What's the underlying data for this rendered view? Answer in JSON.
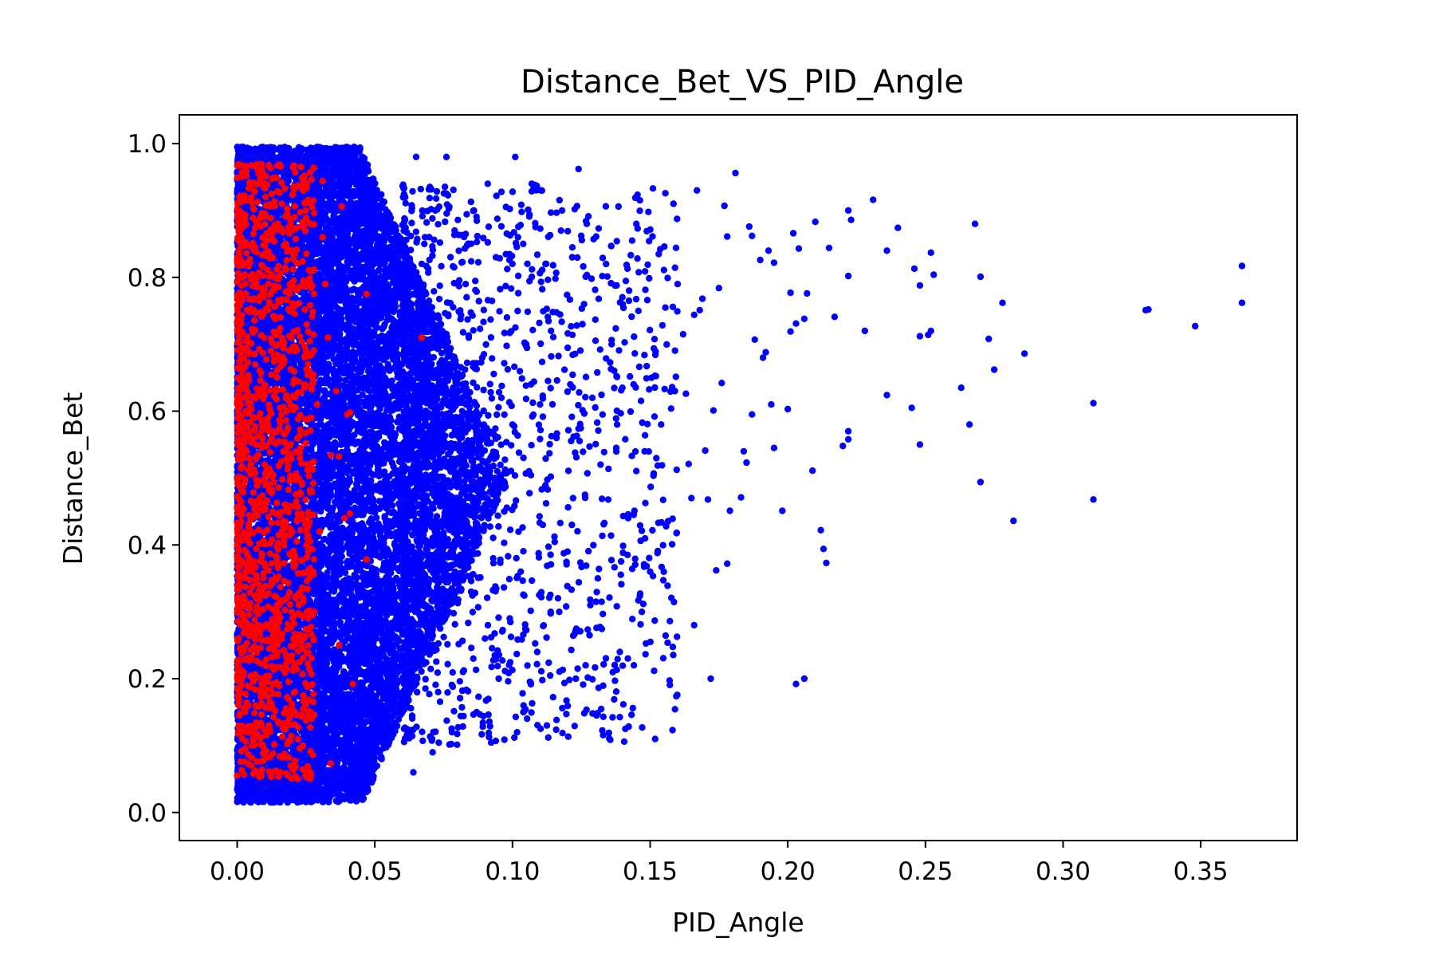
{
  "chart_data": {
    "type": "scatter",
    "title": "Distance_Bet_VS_PID_Angle",
    "xlabel": "PID_Angle",
    "ylabel": "Distance_Bet",
    "xlim": [
      -0.021,
      0.385
    ],
    "ylim": [
      -0.042,
      1.043
    ],
    "xticks": [
      0.0,
      0.05,
      0.1,
      0.15,
      0.2,
      0.25,
      0.3,
      0.35
    ],
    "xtick_labels": [
      "0.00",
      "0.05",
      "0.10",
      "0.15",
      "0.20",
      "0.25",
      "0.30",
      "0.35"
    ],
    "yticks": [
      0.0,
      0.2,
      0.4,
      0.6,
      0.8,
      1.0
    ],
    "ytick_labels": [
      "0.0",
      "0.2",
      "0.4",
      "0.6",
      "0.8",
      "1.0"
    ],
    "grid": false,
    "legend": "none",
    "series": [
      {
        "color": "#0000ff",
        "note_points": "dense cloud x 0.00-0.09; sparse points listed below",
        "points": [
          [
            0.365,
            0.817
          ],
          [
            0.365,
            0.762
          ],
          [
            0.348,
            0.727
          ],
          [
            0.331,
            0.752
          ],
          [
            0.33,
            0.751
          ],
          [
            0.311,
            0.612
          ],
          [
            0.311,
            0.468
          ],
          [
            0.286,
            0.686
          ],
          [
            0.282,
            0.436
          ],
          [
            0.278,
            0.762
          ],
          [
            0.275,
            0.662
          ],
          [
            0.273,
            0.708
          ],
          [
            0.27,
            0.801
          ],
          [
            0.27,
            0.494
          ],
          [
            0.268,
            0.88
          ],
          [
            0.266,
            0.58
          ],
          [
            0.263,
            0.635
          ],
          [
            0.253,
            0.804
          ],
          [
            0.252,
            0.837
          ],
          [
            0.252,
            0.72
          ],
          [
            0.251,
            0.714
          ],
          [
            0.248,
            0.788
          ],
          [
            0.248,
            0.712
          ],
          [
            0.248,
            0.55
          ],
          [
            0.246,
            0.813
          ],
          [
            0.245,
            0.605
          ],
          [
            0.24,
            0.874
          ],
          [
            0.236,
            0.84
          ],
          [
            0.236,
            0.624
          ],
          [
            0.231,
            0.916
          ],
          [
            0.228,
            0.72
          ],
          [
            0.223,
            0.886
          ],
          [
            0.222,
            0.9
          ],
          [
            0.222,
            0.802
          ],
          [
            0.222,
            0.57
          ],
          [
            0.222,
            0.558
          ],
          [
            0.22,
            0.548
          ],
          [
            0.217,
            0.741
          ],
          [
            0.215,
            0.844
          ],
          [
            0.214,
            0.373
          ],
          [
            0.213,
            0.394
          ],
          [
            0.212,
            0.422
          ],
          [
            0.21,
            0.883
          ],
          [
            0.209,
            0.511
          ],
          [
            0.207,
            0.776
          ],
          [
            0.206,
            0.738
          ],
          [
            0.206,
            0.2
          ],
          [
            0.204,
            0.843
          ],
          [
            0.203,
            0.731
          ],
          [
            0.203,
            0.192
          ],
          [
            0.202,
            0.866
          ],
          [
            0.201,
            0.777
          ],
          [
            0.201,
            0.719
          ],
          [
            0.2,
            0.603
          ],
          [
            0.198,
            0.451
          ],
          [
            0.195,
            0.822
          ],
          [
            0.195,
            0.545
          ],
          [
            0.194,
            0.61
          ],
          [
            0.193,
            0.84
          ],
          [
            0.192,
            0.688
          ],
          [
            0.191,
            0.68
          ],
          [
            0.19,
            0.826
          ],
          [
            0.188,
            0.707
          ],
          [
            0.187,
            0.862
          ],
          [
            0.187,
            0.595
          ],
          [
            0.186,
            0.876
          ],
          [
            0.185,
            0.523
          ],
          [
            0.184,
            0.54
          ],
          [
            0.183,
            0.471
          ],
          [
            0.181,
            0.956
          ],
          [
            0.179,
            0.451
          ],
          [
            0.178,
            0.861
          ],
          [
            0.178,
            0.372
          ],
          [
            0.177,
            0.907
          ],
          [
            0.176,
            0.642
          ],
          [
            0.175,
            0.784
          ],
          [
            0.174,
            0.362
          ],
          [
            0.173,
            0.601
          ],
          [
            0.172,
            0.2
          ],
          [
            0.171,
            0.468
          ],
          [
            0.17,
            0.541
          ],
          [
            0.169,
            0.768
          ],
          [
            0.168,
            0.751
          ],
          [
            0.167,
            0.93
          ],
          [
            0.166,
            0.744
          ],
          [
            0.166,
            0.28
          ],
          [
            0.165,
            0.47
          ],
          [
            0.164,
            0.521
          ],
          [
            0.163,
            0.626
          ],
          [
            0.162,
            0.715
          ],
          [
            0.16,
            0.79
          ],
          [
            0.159,
            0.63
          ],
          [
            0.158,
            0.401
          ],
          [
            0.155,
            0.811
          ],
          [
            0.154,
            0.58
          ],
          [
            0.153,
            0.433
          ],
          [
            0.152,
            0.689
          ],
          [
            0.151,
            0.933
          ],
          [
            0.15,
            0.36
          ],
          [
            0.149,
            0.766
          ],
          [
            0.148,
            0.54
          ],
          [
            0.147,
            0.3
          ],
          [
            0.145,
            0.88
          ],
          [
            0.144,
            0.64
          ],
          [
            0.142,
            0.44
          ],
          [
            0.141,
            0.125
          ],
          [
            0.14,
            0.76
          ],
          [
            0.139,
            0.24
          ],
          [
            0.138,
            0.58
          ],
          [
            0.136,
            0.7
          ],
          [
            0.134,
            0.82
          ],
          [
            0.133,
            0.143
          ],
          [
            0.132,
            0.52
          ],
          [
            0.131,
            0.35
          ],
          [
            0.129,
            0.62
          ],
          [
            0.128,
            0.265
          ],
          [
            0.127,
            0.88
          ],
          [
            0.126,
            0.76
          ],
          [
            0.124,
            0.962
          ],
          [
            0.123,
            0.2
          ],
          [
            0.122,
            0.47
          ],
          [
            0.121,
            0.64
          ],
          [
            0.12,
            0.39
          ],
          [
            0.118,
            0.9
          ],
          [
            0.117,
            0.3
          ],
          [
            0.116,
            0.56
          ],
          [
            0.114,
            0.72
          ],
          [
            0.113,
            0.112
          ],
          [
            0.112,
            0.82
          ],
          [
            0.111,
            0.43
          ],
          [
            0.11,
            0.61
          ],
          [
            0.109,
            0.24
          ],
          [
            0.107,
            0.94
          ],
          [
            0.106,
            0.51
          ],
          [
            0.105,
            0.7
          ],
          [
            0.104,
            0.16
          ],
          [
            0.103,
            0.36
          ],
          [
            0.102,
            0.86
          ],
          [
            0.101,
            0.98
          ],
          [
            0.1,
            0.58
          ],
          [
            0.099,
            0.29
          ],
          [
            0.098,
            0.74
          ],
          [
            0.097,
            0.45
          ],
          [
            0.096,
            0.62
          ],
          [
            0.095,
            0.2
          ],
          [
            0.094,
            0.83
          ],
          [
            0.093,
            0.38
          ],
          [
            0.092,
            0.53
          ],
          [
            0.091,
            0.94
          ],
          [
            0.09,
            0.26
          ],
          [
            0.089,
            0.68
          ],
          [
            0.088,
            0.47
          ],
          [
            0.087,
            0.15
          ],
          [
            0.086,
            0.9
          ],
          [
            0.085,
            0.33
          ],
          [
            0.084,
            0.58
          ],
          [
            0.083,
            0.79
          ],
          [
            0.082,
            0.21
          ],
          [
            0.081,
            0.42
          ],
          [
            0.08,
            0.64
          ],
          [
            0.079,
            0.87
          ],
          [
            0.078,
            0.12
          ],
          [
            0.077,
            0.52
          ],
          [
            0.076,
            0.98
          ],
          [
            0.075,
            0.3
          ],
          [
            0.074,
            0.73
          ],
          [
            0.073,
            0.18
          ],
          [
            0.072,
            0.9
          ],
          [
            0.071,
            0.09
          ],
          [
            0.07,
            0.62
          ],
          [
            0.069,
            0.4
          ],
          [
            0.068,
            0.85
          ],
          [
            0.067,
            0.23
          ],
          [
            0.066,
            0.7
          ],
          [
            0.065,
            0.98
          ],
          [
            0.064,
            0.06
          ],
          [
            0.063,
            0.56
          ],
          [
            0.062,
            0.33
          ],
          [
            0.061,
            0.92
          ],
          [
            0.06,
            0.15
          ]
        ]
      },
      {
        "color": "#ff0000",
        "note_points": "dense band x 0.00-0.03; sparse points listed below",
        "points": [
          [
            0.067,
            0.71
          ],
          [
            0.047,
            0.775
          ],
          [
            0.047,
            0.378
          ],
          [
            0.042,
            0.192
          ],
          [
            0.041,
            0.598
          ],
          [
            0.041,
            0.447
          ],
          [
            0.04,
            0.595
          ],
          [
            0.039,
            0.44
          ],
          [
            0.038,
            0.906
          ],
          [
            0.037,
            0.25
          ],
          [
            0.037,
            0.532
          ],
          [
            0.036,
            0.63
          ],
          [
            0.034,
            0.073
          ],
          [
            0.034,
            0.534
          ],
          [
            0.033,
            0.71
          ],
          [
            0.032,
            0.79
          ],
          [
            0.031,
            0.944
          ],
          [
            0.031,
            0.86
          ],
          [
            0.03,
            0.42
          ],
          [
            0.029,
            0.61
          ],
          [
            0.028,
            0.3
          ],
          [
            0.027,
            0.14
          ],
          [
            0.026,
            0.52
          ],
          [
            0.025,
            0.69
          ],
          [
            0.024,
            0.93
          ],
          [
            0.023,
            0.965
          ],
          [
            0.022,
            0.05
          ],
          [
            0.021,
            0.38
          ],
          [
            0.02,
            0.87
          ],
          [
            0.009,
            0.958
          ],
          [
            0.008,
            0.06
          ],
          [
            0.003,
            0.79
          ],
          [
            0.002,
            0.65
          ],
          [
            0.001,
            0.34
          ]
        ]
      }
    ]
  }
}
